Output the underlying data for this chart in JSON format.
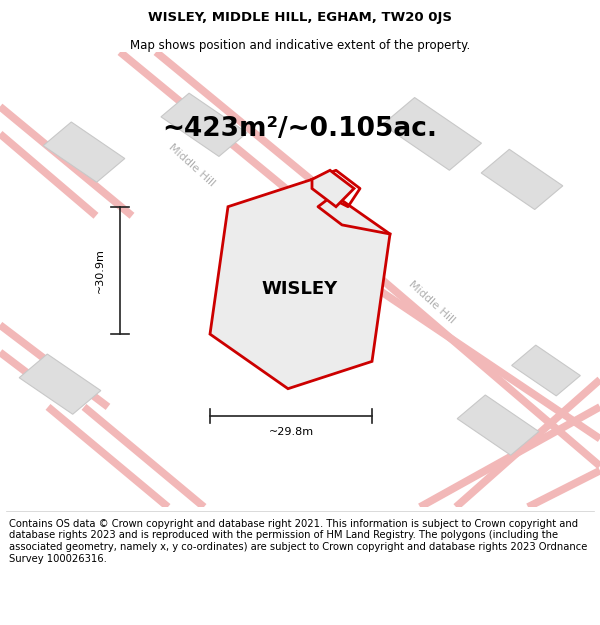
{
  "title_line1": "WISLEY, MIDDLE HILL, EGHAM, TW20 0JS",
  "title_line2": "Map shows position and indicative extent of the property.",
  "area_text": "~423m²/~0.105ac.",
  "property_label": "WISLEY",
  "dim_width": "~29.8m",
  "dim_height": "~30.9m",
  "road_label_1": "Middle Hill",
  "road_label_2": "Middle Hill",
  "footer_text": "Contains OS data © Crown copyright and database right 2021. This information is subject to Crown copyright and database rights 2023 and is reproduced with the permission of HM Land Registry. The polygons (including the associated geometry, namely x, y co-ordinates) are subject to Crown copyright and database rights 2023 Ordnance Survey 100026316.",
  "bg_color": "#f7f7f7",
  "road_color": "#f2b8b8",
  "building_fill": "#dedede",
  "building_edge": "#c8c8c8",
  "property_fill": "#ececec",
  "property_edge": "#cc0000",
  "dim_line_color": "#222222",
  "title_fontsize": 9.5,
  "area_fontsize": 19,
  "label_fontsize": 13,
  "footer_fontsize": 7.2,
  "road_label_fontsize": 8,
  "road_lw": 5.5
}
